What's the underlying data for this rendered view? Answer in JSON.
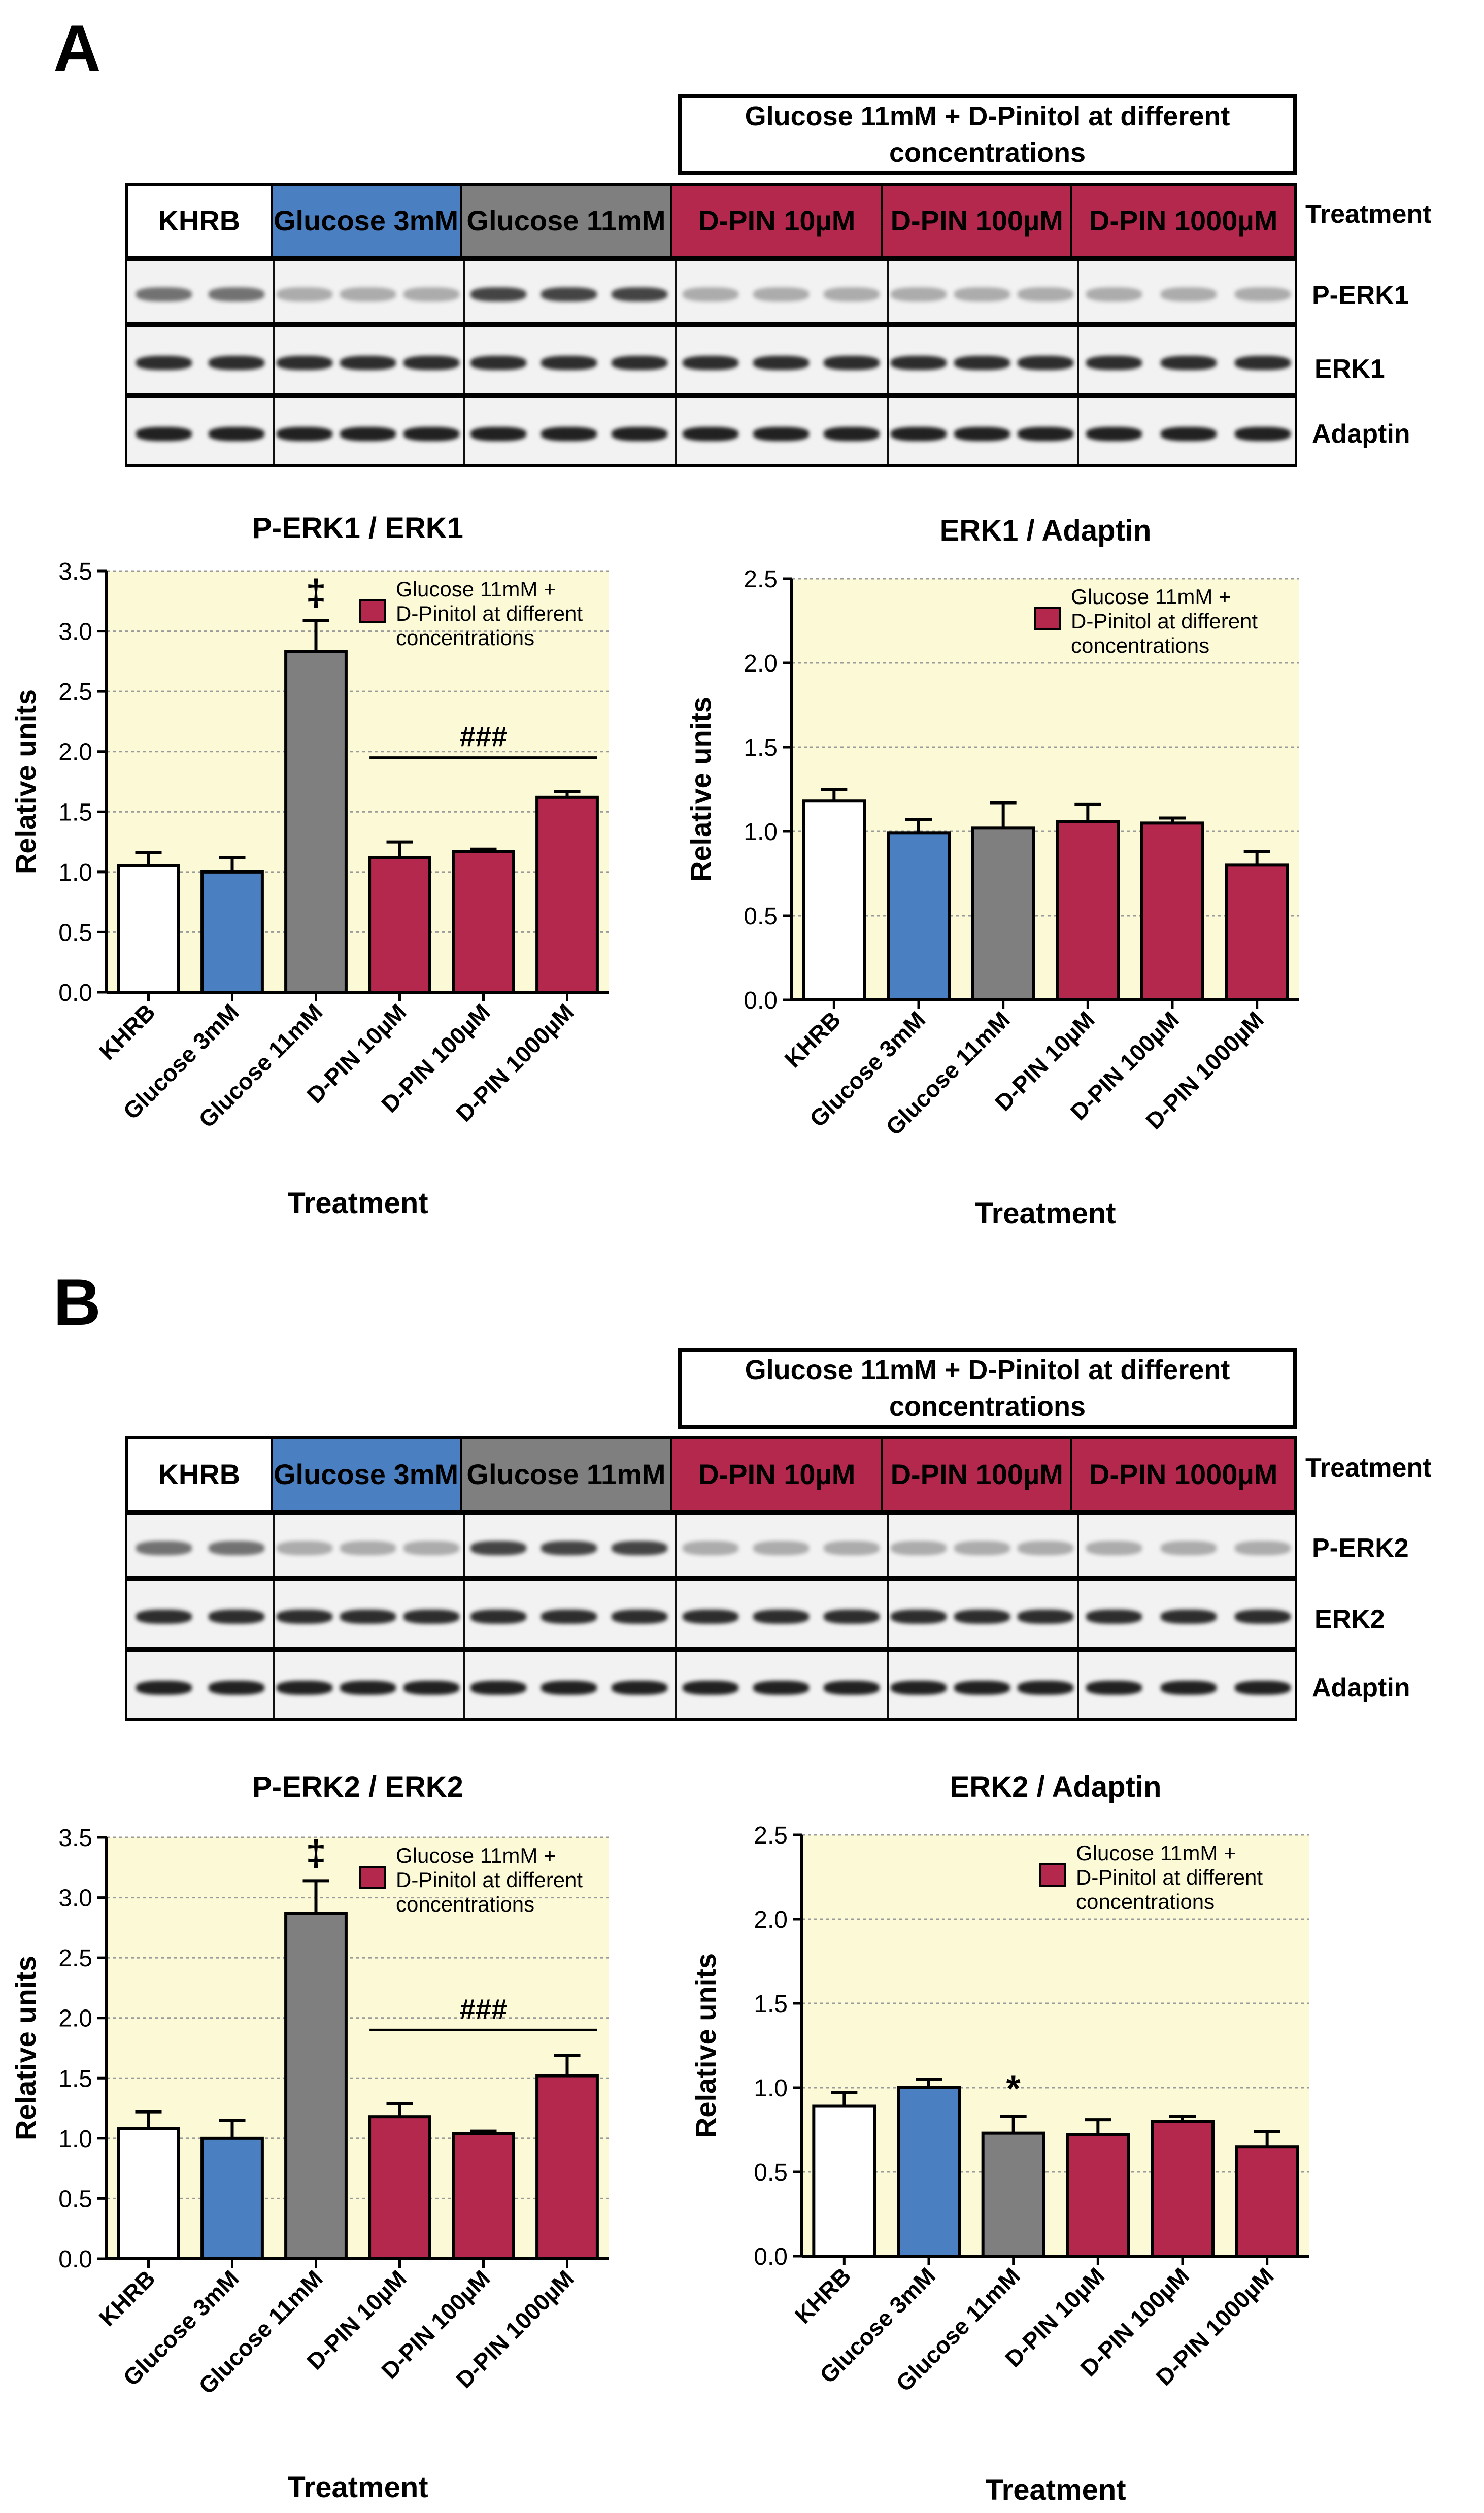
{
  "panels": [
    {
      "letter": "A",
      "header": "Glucose 11mM + D-Pinitol at different concentrations",
      "treatment_label": "Treatment",
      "treatments": [
        "KHRB",
        "Glucose 3mM",
        "Glucose 11mM",
        "D-PIN 10µM",
        "D-PIN 100µM",
        "D-PIN 1000µM"
      ],
      "blot_rows": [
        "P-ERK1",
        "ERK1",
        "Adaptin"
      ]
    },
    {
      "letter": "B",
      "header": "Glucose 11mM + D-Pinitol at different concentrations",
      "treatment_label": "Treatment",
      "treatments": [
        "KHRB",
        "Glucose 3mM",
        "Glucose 11mM",
        "D-PIN 10µM",
        "D-PIN 100µM",
        "D-PIN 1000µM"
      ],
      "blot_rows": [
        "P-ERK2",
        "ERK2",
        "Adaptin"
      ]
    }
  ],
  "colors": {
    "khrb": "#ffffff",
    "glucose3": "#4a7fc1",
    "glucose11": "#7f7f7f",
    "dpin": "#b5284e",
    "plot_bg": "#fbf9d6"
  },
  "chart_data": [
    {
      "type": "bar",
      "title": "P-ERK1 / ERK1",
      "categories": [
        "KHRB",
        "Glucose 3mM",
        "Glucose 11mM",
        "D-PIN 10µM",
        "D-PIN 100µM",
        "D-PIN 1000µM"
      ],
      "values": [
        1.05,
        1.0,
        2.83,
        1.12,
        1.17,
        1.62
      ],
      "errors": [
        0.11,
        0.12,
        0.26,
        0.13,
        0.02,
        0.05
      ],
      "colors": [
        "#ffffff",
        "#4a7fc1",
        "#7f7f7f",
        "#b5284e",
        "#b5284e",
        "#b5284e"
      ],
      "ylim": [
        0,
        3.5
      ],
      "yticks": [
        "0.0",
        "0.5",
        "1.0",
        "1.5",
        "2.0",
        "2.5",
        "3.0",
        "3.5"
      ],
      "xlabel": "Treatment",
      "ylabel": "Relative units",
      "legend": "Glucose 11mM + D-Pinitol at different concentrations",
      "legend_lines": [
        "Glucose 11mM +",
        "D-Pinitol at different",
        "concentrations"
      ],
      "annotations": [
        {
          "text": "‡",
          "category": "Glucose 11mM"
        },
        {
          "text": "###",
          "category": "D-PIN 100µM",
          "bracket_from": "D-PIN 10µM",
          "bracket_to": "D-PIN 1000µM",
          "y": 1.95
        }
      ]
    },
    {
      "type": "bar",
      "title": "ERK1 / Adaptin",
      "categories": [
        "KHRB",
        "Glucose 3mM",
        "Glucose 11mM",
        "D-PIN 10µM",
        "D-PIN 100µM",
        "D-PIN 1000µM"
      ],
      "values": [
        1.18,
        0.99,
        1.02,
        1.06,
        1.05,
        0.8
      ],
      "errors": [
        0.07,
        0.08,
        0.15,
        0.1,
        0.03,
        0.08
      ],
      "colors": [
        "#ffffff",
        "#4a7fc1",
        "#7f7f7f",
        "#b5284e",
        "#b5284e",
        "#b5284e"
      ],
      "ylim": [
        0,
        2.5
      ],
      "yticks": [
        "0.0",
        "0.5",
        "1.0",
        "1.5",
        "2.0",
        "2.5"
      ],
      "xlabel": "Treatment",
      "ylabel": "Relative units",
      "legend": "Glucose 11mM + D-Pinitol at different concentrations",
      "legend_lines": [
        "Glucose 11mM +",
        "D-Pinitol at different",
        "concentrations"
      ],
      "annotations": []
    },
    {
      "type": "bar",
      "title": "P-ERK2 / ERK2",
      "categories": [
        "KHRB",
        "Glucose 3mM",
        "Glucose 11mM",
        "D-PIN 10µM",
        "D-PIN 100µM",
        "D-PIN 1000µM"
      ],
      "values": [
        1.08,
        1.0,
        2.87,
        1.18,
        1.04,
        1.52
      ],
      "errors": [
        0.14,
        0.15,
        0.27,
        0.11,
        0.02,
        0.17
      ],
      "colors": [
        "#ffffff",
        "#4a7fc1",
        "#7f7f7f",
        "#b5284e",
        "#b5284e",
        "#b5284e"
      ],
      "ylim": [
        0,
        3.5
      ],
      "yticks": [
        "0.0",
        "0.5",
        "1.0",
        "1.5",
        "2.0",
        "2.5",
        "3.0",
        "3.5"
      ],
      "xlabel": "Treatment",
      "ylabel": "Relative units",
      "legend": "Glucose 11mM + D-Pinitol at different concentrations",
      "legend_lines": [
        "Glucose 11mM +",
        "D-Pinitol at different",
        "concentrations"
      ],
      "annotations": [
        {
          "text": "‡",
          "category": "Glucose 11mM"
        },
        {
          "text": "###",
          "category": "D-PIN 100µM",
          "bracket_from": "D-PIN 10µM",
          "bracket_to": "D-PIN 1000µM",
          "y": 1.9
        }
      ]
    },
    {
      "type": "bar",
      "title": "ERK2 / Adaptin",
      "categories": [
        "KHRB",
        "Glucose 3mM",
        "Glucose 11mM",
        "D-PIN 10µM",
        "D-PIN 100µM",
        "D-PIN 1000µM"
      ],
      "values": [
        0.89,
        1.0,
        0.73,
        0.72,
        0.8,
        0.65
      ],
      "errors": [
        0.08,
        0.05,
        0.1,
        0.09,
        0.03,
        0.09
      ],
      "colors": [
        "#ffffff",
        "#4a7fc1",
        "#7f7f7f",
        "#b5284e",
        "#b5284e",
        "#b5284e"
      ],
      "ylim": [
        0,
        2.5
      ],
      "yticks": [
        "0.0",
        "0.5",
        "1.0",
        "1.5",
        "2.0",
        "2.5"
      ],
      "xlabel": "Treatment",
      "ylabel": "Relative units",
      "legend": "Glucose 11mM + D-Pinitol at different concentrations",
      "legend_lines": [
        "Glucose 11mM +",
        "D-Pinitol at different",
        "concentrations"
      ],
      "annotations": [
        {
          "text": "*",
          "category": "Glucose 11mM"
        }
      ]
    }
  ]
}
